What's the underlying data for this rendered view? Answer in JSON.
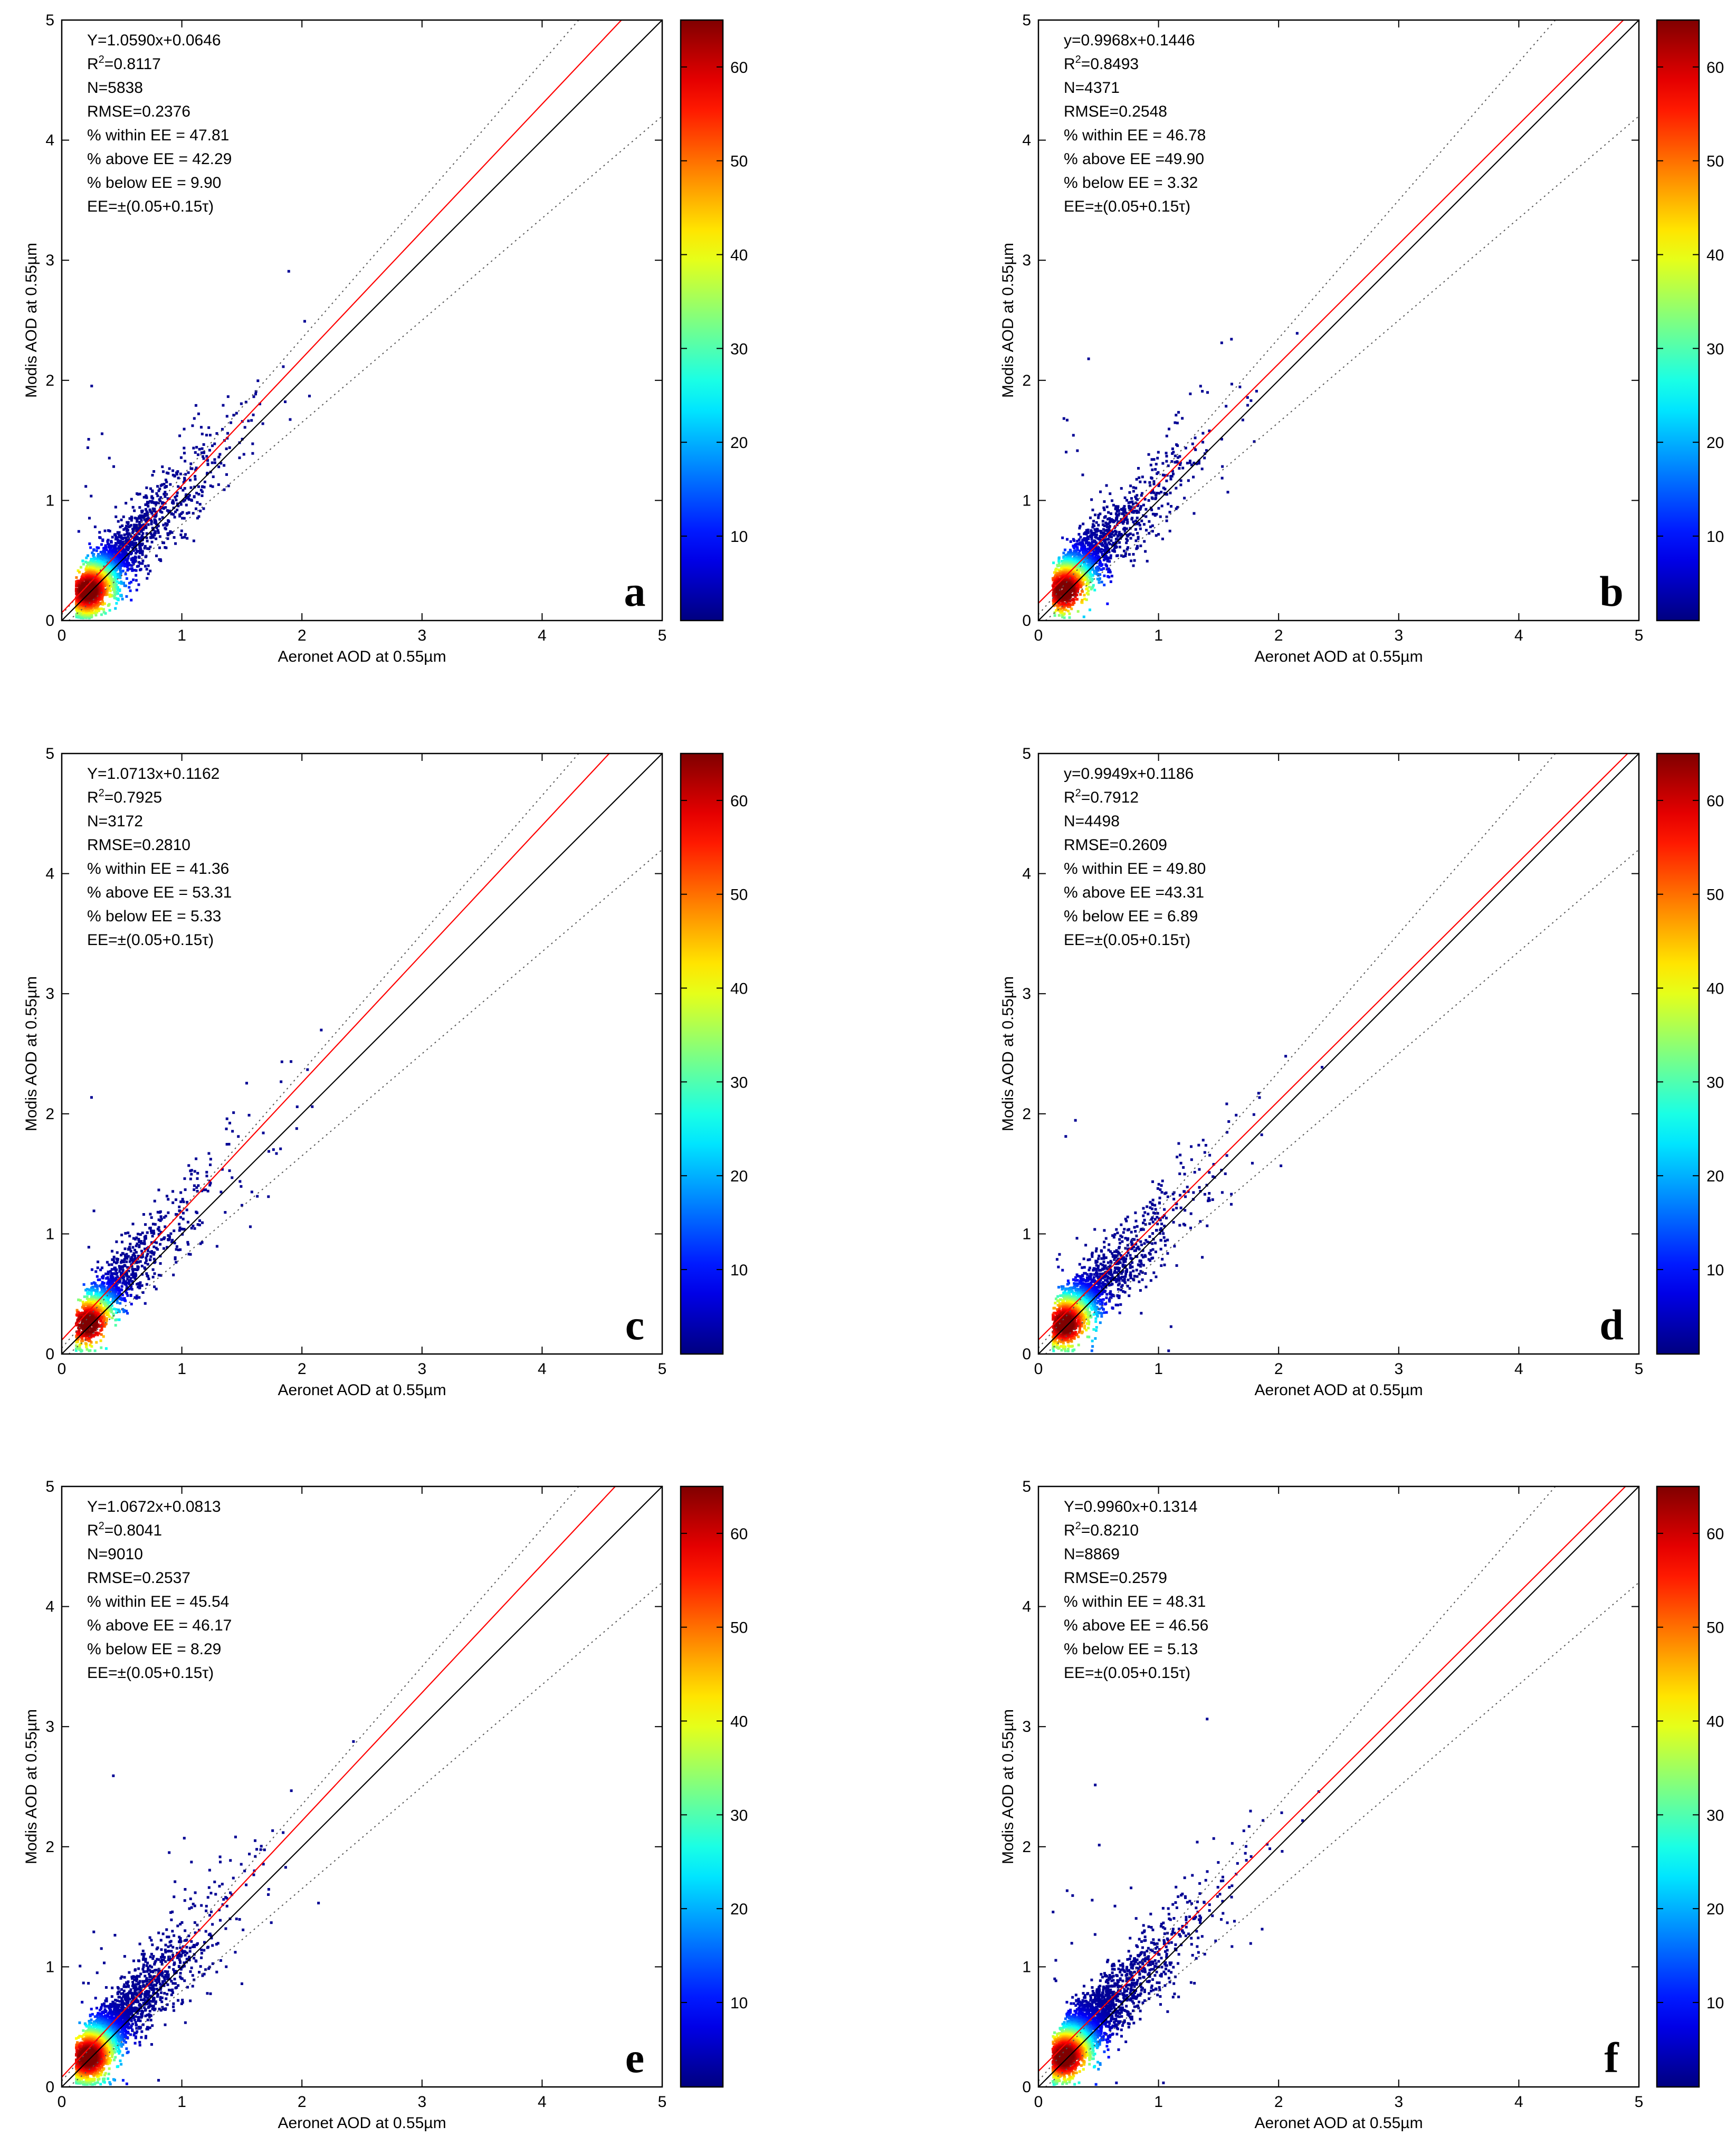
{
  "figure": {
    "xlabel": "Aeronet AOD at 0.55µm",
    "ylabel": "Modis AOD at 0.55µm",
    "colorbar_ticks": [
      "10",
      "20",
      "30",
      "40",
      "50",
      "60"
    ],
    "colorbar_range": [
      1,
      65
    ],
    "axis_ticks": [
      "0",
      "1",
      "2",
      "3",
      "4",
      "5"
    ]
  },
  "chart_data": [
    {
      "type": "scatter",
      "panel_label": "a",
      "xlim": [
        0,
        5
      ],
      "ylim": [
        0,
        5
      ],
      "regression": {
        "slope": 1.059,
        "intercept": 0.0646
      },
      "stats": [
        "Y=1.0590x+0.0646",
        "R2=0.8117",
        "N=5838",
        "RMSE=0.2376",
        "% within EE = 47.81",
        "% above EE = 42.29",
        "% below EE = 9.90",
        "EE=±(0.05+0.15τ)"
      ],
      "reference_lines": [
        "1:1",
        "EE upper",
        "EE lower"
      ]
    },
    {
      "type": "scatter",
      "panel_label": "b",
      "xlim": [
        0,
        5
      ],
      "ylim": [
        0,
        5
      ],
      "regression": {
        "slope": 0.9968,
        "intercept": 0.1446
      },
      "stats": [
        "y=0.9968x+0.1446",
        "R2=0.8493",
        "N=4371",
        "RMSE=0.2548",
        "% within EE = 46.78",
        "% above EE =49.90",
        "% below EE = 3.32",
        "EE=±(0.05+0.15τ)"
      ],
      "reference_lines": [
        "1:1",
        "EE upper",
        "EE lower"
      ]
    },
    {
      "type": "scatter",
      "panel_label": "c",
      "xlim": [
        0,
        5
      ],
      "ylim": [
        0,
        5
      ],
      "regression": {
        "slope": 1.0713,
        "intercept": 0.1162
      },
      "stats": [
        "Y=1.0713x+0.1162",
        "R2=0.7925",
        "N=3172",
        "RMSE=0.2810",
        "% within EE = 41.36",
        "% above EE = 53.31",
        "% below EE = 5.33",
        "EE=±(0.05+0.15τ)"
      ],
      "reference_lines": [
        "1:1",
        "EE upper",
        "EE lower"
      ]
    },
    {
      "type": "scatter",
      "panel_label": "d",
      "xlim": [
        0,
        5
      ],
      "ylim": [
        0,
        5
      ],
      "regression": {
        "slope": 0.9949,
        "intercept": 0.1186
      },
      "stats": [
        "y=0.9949x+0.1186",
        "R2=0.7912",
        "N=4498",
        "RMSE=0.2609",
        "% within EE = 49.80",
        "% above EE =43.31",
        "% below EE = 6.89",
        "EE=±(0.05+0.15τ)"
      ],
      "reference_lines": [
        "1:1",
        "EE upper",
        "EE lower"
      ]
    },
    {
      "type": "scatter",
      "panel_label": "e",
      "xlim": [
        0,
        5
      ],
      "ylim": [
        0,
        5
      ],
      "regression": {
        "slope": 1.0672,
        "intercept": 0.0813
      },
      "stats": [
        "Y=1.0672x+0.0813",
        "R2=0.8041",
        "N=9010",
        "RMSE=0.2537",
        "% within EE = 45.54",
        "% above EE = 46.17",
        "% below EE = 8.29",
        "EE=±(0.05+0.15τ)"
      ],
      "reference_lines": [
        "1:1",
        "EE upper",
        "EE lower"
      ]
    },
    {
      "type": "scatter",
      "panel_label": "f",
      "xlim": [
        0,
        5
      ],
      "ylim": [
        0,
        5
      ],
      "regression": {
        "slope": 0.996,
        "intercept": 0.1314
      },
      "stats": [
        "Y=0.9960x+0.1314",
        "R2=0.8210",
        "N=8869",
        "RMSE=0.2579",
        "% within EE = 48.31",
        "% above EE = 46.56",
        "% below EE = 5.13",
        "EE=±(0.05+0.15τ)"
      ],
      "reference_lines": [
        "1:1",
        "EE upper",
        "EE lower"
      ]
    }
  ]
}
